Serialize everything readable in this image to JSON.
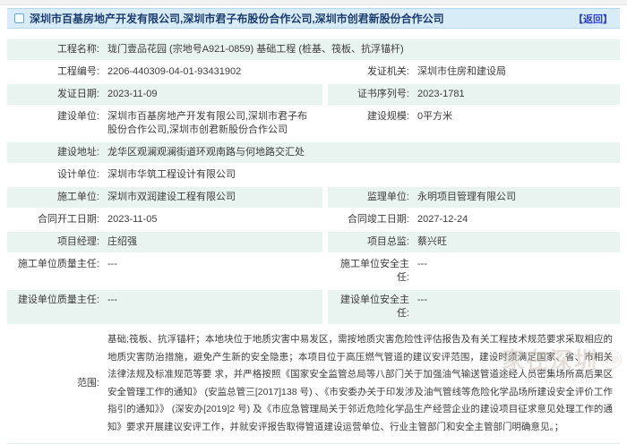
{
  "colors": {
    "header_bg": "#d8ecf7",
    "header_border": "#b7d7e9",
    "header_text": "#1c3c6e",
    "link": "#2b3ed2",
    "row_shade": "#e9f3ef",
    "text": "#3f3f3f"
  },
  "header": {
    "title": "深圳市百基房地产开发有限公司,深圳市君子布股份合作公司,深圳市创君新股份合作公司",
    "back_label": "【返回】"
  },
  "rows": [
    {
      "shaded": true,
      "cells": [
        {
          "full": true,
          "label": "工程名称:",
          "value": "珑门壹品花园 (宗地号A921-0859) 基础工程 (桩基、筏板、抗浮锚杆)"
        }
      ]
    },
    {
      "shaded": false,
      "cells": [
        {
          "label": "工程编号:",
          "value": "2206-440309-04-01-93431902"
        },
        {
          "label": "发证机关:",
          "value": "深圳市住房和建设局"
        }
      ]
    },
    {
      "shaded": true,
      "cells": [
        {
          "label": "发证日期:",
          "value": "2023-11-09"
        },
        {
          "label": "证书序列号:",
          "value": "2023-1781"
        }
      ]
    },
    {
      "shaded": false,
      "cells": [
        {
          "label": "建设单位:",
          "value": "深圳市百基房地产开发有限公司,深圳市君子布股份合作公司,深圳市创君新股份合作公司"
        },
        {
          "label": "建设规模:",
          "value": "0平方米"
        }
      ]
    },
    {
      "shaded": true,
      "cells": [
        {
          "full": true,
          "label": "建设地址:",
          "value": "龙华区观澜观澜街道环观南路与何地路交汇处"
        }
      ]
    },
    {
      "shaded": false,
      "cells": [
        {
          "full": true,
          "label": "设计单位:",
          "value": "深圳市华筑工程设计有限公司"
        }
      ]
    },
    {
      "shaded": true,
      "cells": [
        {
          "label": "施工单位:",
          "value": "深圳市双润建设工程有限公司"
        },
        {
          "label": "监理单位:",
          "value": "永明项目管理有限公司"
        }
      ]
    },
    {
      "shaded": false,
      "cells": [
        {
          "label": "合同开工日期:",
          "value": "2023-11-05"
        },
        {
          "label": "合同竣工日期:",
          "value": "2027-12-24"
        }
      ]
    },
    {
      "shaded": true,
      "cells": [
        {
          "label": "项目经理:",
          "value": "庄绍强"
        },
        {
          "label": "项目总监:",
          "value": "蔡兴旺"
        }
      ]
    },
    {
      "shaded": false,
      "cells": [
        {
          "label": "施工单位质量主任:",
          "value": "---"
        },
        {
          "label": "施工单位安全主任:",
          "value": "---"
        }
      ]
    },
    {
      "shaded": true,
      "cells": [
        {
          "label": "建设单位质量主任:",
          "value": "---"
        },
        {
          "label": "建设单位安全主任:",
          "value": "---"
        }
      ]
    },
    {
      "shaded": false,
      "scope": true,
      "cells": [
        {
          "full": true,
          "label": "范围:",
          "value": "基础;筏板、抗浮锚杆；本地块位于地质灾害中易发区，需按地质灾害危险性评估报告及有关工程技术规范要求采取相应的地质灾害防治措施，避免产生新的安全隐患；本项目位于高压燃气管道的建议安评范围，建设时须满足国家、省、市相关法律法规及标准规范等要 求，并严格按照《国家安全监管总局等八部门关于加强油气输送管道途经人员密集场所高后果区安全管理工作的通知》 (安监总管三[2017]138 号) 、《市安委办关于印发涉及油气管线等危险化学品场所建设安全评价工作指引的通知》》 (深安办[2019]2 号) 及《市应急管理局关于邻近危险化学品生产经营企业的建设项目征求意见处理工作的通知》要求开展建议安评工作，并就安评报告取得管道建设运营单位、行业主管部门和安全主管部门明确意见。；"
        }
      ]
    }
  ],
  "watermark": {
    "text": "家在深圳",
    "badge": "深圳",
    "url": "bbs.szhome.com"
  }
}
